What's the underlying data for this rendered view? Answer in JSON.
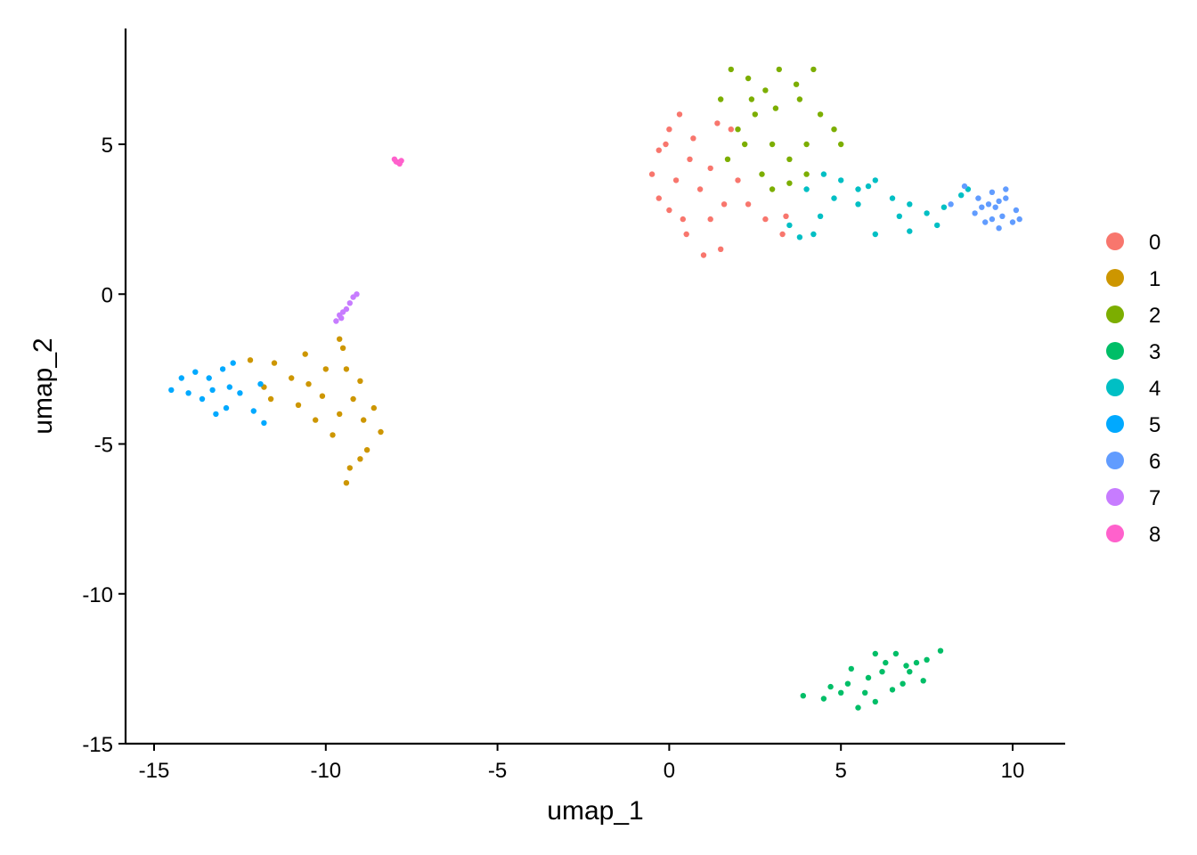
{
  "chart_data": {
    "type": "scatter",
    "title": "",
    "xlabel": "umap_1",
    "ylabel": "umap_2",
    "xlim": [
      -16,
      11.5
    ],
    "ylim": [
      -15,
      8.9
    ],
    "x_ticks": [
      -15,
      -10,
      -5,
      0,
      5,
      10
    ],
    "y_ticks": [
      5,
      0,
      -5,
      -10,
      -15
    ],
    "x_tick_labels": [
      "-15",
      "-10",
      "-5",
      "0",
      "5",
      "10"
    ],
    "y_tick_labels": [
      "5",
      "0",
      "-5",
      "-10",
      "-15"
    ],
    "grid": false,
    "legend_position": "right",
    "series": [
      {
        "name": "0",
        "color": "#F8766D",
        "points": [
          [
            -0.5,
            4.0
          ],
          [
            -0.3,
            4.8
          ],
          [
            0.0,
            5.5
          ],
          [
            0.3,
            6.0
          ],
          [
            0.6,
            4.5
          ],
          [
            0.9,
            3.5
          ],
          [
            1.2,
            2.5
          ],
          [
            1.0,
            1.3
          ],
          [
            0.5,
            2.0
          ],
          [
            0.0,
            2.8
          ],
          [
            -0.3,
            3.2
          ],
          [
            0.2,
            3.8
          ],
          [
            0.7,
            5.2
          ],
          [
            1.2,
            4.2
          ],
          [
            1.6,
            3.0
          ],
          [
            1.8,
            5.5
          ],
          [
            2.3,
            3.0
          ],
          [
            2.8,
            2.5
          ],
          [
            3.3,
            2.0
          ],
          [
            3.4,
            2.6
          ],
          [
            0.4,
            2.5
          ],
          [
            1.5,
            1.5
          ],
          [
            -0.1,
            5.0
          ],
          [
            1.4,
            5.7
          ],
          [
            2.0,
            3.8
          ]
        ]
      },
      {
        "name": "1",
        "color": "#CD9600",
        "points": [
          [
            -12.2,
            -2.2
          ],
          [
            -11.5,
            -2.3
          ],
          [
            -11.0,
            -2.8
          ],
          [
            -10.5,
            -3.0
          ],
          [
            -10.0,
            -2.5
          ],
          [
            -9.5,
            -1.8
          ],
          [
            -9.0,
            -2.9
          ],
          [
            -8.6,
            -3.8
          ],
          [
            -8.4,
            -4.6
          ],
          [
            -8.8,
            -5.2
          ],
          [
            -9.3,
            -5.8
          ],
          [
            -9.4,
            -6.3
          ],
          [
            -9.8,
            -4.7
          ],
          [
            -10.3,
            -4.2
          ],
          [
            -10.8,
            -3.7
          ],
          [
            -9.2,
            -3.5
          ],
          [
            -9.6,
            -4.0
          ],
          [
            -10.1,
            -3.4
          ],
          [
            -8.9,
            -4.2
          ],
          [
            -9.0,
            -5.5
          ],
          [
            -9.6,
            -1.5
          ],
          [
            -10.6,
            -2.0
          ],
          [
            -11.6,
            -3.5
          ],
          [
            -11.8,
            -3.1
          ],
          [
            -9.4,
            -2.5
          ]
        ]
      },
      {
        "name": "2",
        "color": "#7CAE00",
        "points": [
          [
            1.5,
            6.5
          ],
          [
            1.8,
            7.5
          ],
          [
            2.3,
            7.2
          ],
          [
            2.8,
            6.8
          ],
          [
            3.2,
            7.5
          ],
          [
            3.7,
            7.0
          ],
          [
            4.2,
            7.5
          ],
          [
            2.5,
            6.0
          ],
          [
            2.0,
            5.5
          ],
          [
            3.0,
            5.0
          ],
          [
            3.5,
            4.5
          ],
          [
            2.7,
            4.0
          ],
          [
            3.0,
            3.5
          ],
          [
            3.5,
            3.7
          ],
          [
            4.0,
            5.0
          ],
          [
            4.4,
            6.0
          ],
          [
            4.8,
            5.5
          ],
          [
            5.0,
            5.0
          ],
          [
            2.2,
            5.0
          ],
          [
            1.7,
            4.5
          ],
          [
            3.8,
            6.5
          ],
          [
            2.4,
            6.5
          ],
          [
            3.1,
            6.2
          ],
          [
            4.0,
            4.0
          ]
        ]
      },
      {
        "name": "3",
        "color": "#00BE67",
        "points": [
          [
            3.9,
            -13.4
          ],
          [
            4.5,
            -13.5
          ],
          [
            5.0,
            -13.3
          ],
          [
            5.5,
            -13.8
          ],
          [
            6.0,
            -13.6
          ],
          [
            6.5,
            -13.2
          ],
          [
            7.0,
            -12.6
          ],
          [
            7.5,
            -12.2
          ],
          [
            7.9,
            -11.9
          ],
          [
            7.4,
            -12.9
          ],
          [
            6.8,
            -13.0
          ],
          [
            6.3,
            -12.3
          ],
          [
            5.8,
            -12.8
          ],
          [
            5.3,
            -12.5
          ],
          [
            6.0,
            -12.0
          ],
          [
            5.2,
            -13.0
          ],
          [
            6.6,
            -12.0
          ],
          [
            7.2,
            -12.3
          ],
          [
            4.7,
            -13.1
          ],
          [
            5.7,
            -13.3
          ],
          [
            6.2,
            -12.6
          ],
          [
            6.9,
            -12.4
          ]
        ]
      },
      {
        "name": "4",
        "color": "#00BFC4",
        "points": [
          [
            4.0,
            3.5
          ],
          [
            4.5,
            4.0
          ],
          [
            5.0,
            3.8
          ],
          [
            5.5,
            3.5
          ],
          [
            6.0,
            3.8
          ],
          [
            6.5,
            3.2
          ],
          [
            7.0,
            3.0
          ],
          [
            7.5,
            2.7
          ],
          [
            8.0,
            2.9
          ],
          [
            8.5,
            3.3
          ],
          [
            6.0,
            2.0
          ],
          [
            7.0,
            2.1
          ],
          [
            5.5,
            3.0
          ],
          [
            4.8,
            3.2
          ],
          [
            3.5,
            2.3
          ],
          [
            3.8,
            1.9
          ],
          [
            4.2,
            2.0
          ],
          [
            6.7,
            2.6
          ],
          [
            7.8,
            2.3
          ],
          [
            8.7,
            3.5
          ],
          [
            5.8,
            3.6
          ],
          [
            4.4,
            2.6
          ]
        ]
      },
      {
        "name": "5",
        "color": "#00A9FF",
        "points": [
          [
            -14.5,
            -3.2
          ],
          [
            -14.2,
            -2.8
          ],
          [
            -13.8,
            -2.6
          ],
          [
            -13.4,
            -2.8
          ],
          [
            -13.0,
            -2.5
          ],
          [
            -12.7,
            -2.3
          ],
          [
            -12.5,
            -3.3
          ],
          [
            -12.9,
            -3.8
          ],
          [
            -13.2,
            -4.0
          ],
          [
            -13.6,
            -3.5
          ],
          [
            -14.0,
            -3.3
          ],
          [
            -12.8,
            -3.1
          ],
          [
            -13.3,
            -3.2
          ],
          [
            -11.8,
            -4.3
          ],
          [
            -12.1,
            -3.9
          ],
          [
            -11.9,
            -3.0
          ]
        ]
      },
      {
        "name": "6",
        "color": "#619CFF",
        "points": [
          [
            9.0,
            3.2
          ],
          [
            9.4,
            3.4
          ],
          [
            9.8,
            3.2
          ],
          [
            10.1,
            2.8
          ],
          [
            10.0,
            2.4
          ],
          [
            9.6,
            2.2
          ],
          [
            9.2,
            2.4
          ],
          [
            8.9,
            2.7
          ],
          [
            9.5,
            2.9
          ],
          [
            9.7,
            2.6
          ],
          [
            9.3,
            3.0
          ],
          [
            10.2,
            2.5
          ],
          [
            9.4,
            2.5
          ],
          [
            9.8,
            3.5
          ],
          [
            9.1,
            2.9
          ],
          [
            9.6,
            3.1
          ],
          [
            8.6,
            3.6
          ],
          [
            8.2,
            3.0
          ]
        ]
      },
      {
        "name": "7",
        "color": "#C77CFF",
        "points": [
          [
            -9.7,
            -0.9
          ],
          [
            -9.6,
            -0.7
          ],
          [
            -9.4,
            -0.5
          ],
          [
            -9.3,
            -0.3
          ],
          [
            -9.2,
            -0.1
          ],
          [
            -9.5,
            -0.6
          ],
          [
            -9.1,
            0.0
          ],
          [
            -9.55,
            -0.8
          ]
        ]
      },
      {
        "name": "8",
        "color": "#FF61CC",
        "points": [
          [
            -7.9,
            4.4
          ],
          [
            -7.8,
            4.45
          ],
          [
            -8.0,
            4.5
          ],
          [
            -7.85,
            4.35
          ],
          [
            -7.95,
            4.42
          ]
        ]
      }
    ]
  }
}
